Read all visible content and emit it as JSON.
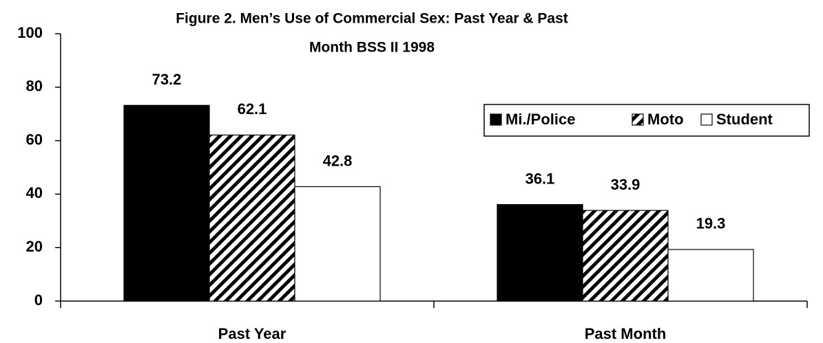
{
  "chart_data": {
    "type": "bar",
    "title": [
      "Figure 2.  Men’s Use of Commercial Sex: Past Year & Past",
      "Month BSS II 1998"
    ],
    "categories": [
      "Past Year",
      "Past Month"
    ],
    "series": [
      {
        "name": "Mi./Police",
        "color": "#000000",
        "pattern": "solid",
        "values": [
          73.2,
          36.1
        ]
      },
      {
        "name": "Moto",
        "color": "#000000",
        "pattern": "hatch",
        "values": [
          62.1,
          33.9
        ]
      },
      {
        "name": "Student",
        "color": "#ffffff",
        "pattern": "solid",
        "values": [
          42.8,
          19.3
        ]
      }
    ],
    "ylim": [
      0,
      100
    ],
    "yticks": [
      0,
      20,
      40,
      60,
      80,
      100
    ],
    "grid": false,
    "legend": "right"
  }
}
